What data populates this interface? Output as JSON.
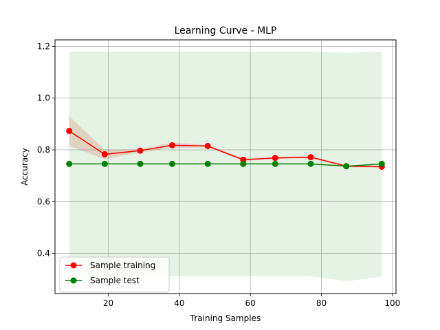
{
  "chart_data": {
    "type": "line",
    "title": "Learning Curve - MLP",
    "xlabel": "Training Samples",
    "ylabel": "Accuracy",
    "xlim": [
      5,
      101
    ],
    "ylim": [
      0.245,
      1.225
    ],
    "xticks": [
      20,
      40,
      60,
      80,
      100
    ],
    "yticks": [
      0.4,
      0.6,
      0.8,
      1.0,
      1.2
    ],
    "xtick_labels": [
      "20",
      "40",
      "60",
      "80",
      "100"
    ],
    "ytick_labels": [
      "0.4",
      "0.6",
      "0.8",
      "1.0",
      "1.2"
    ],
    "grid": true,
    "legend_position": "lower-left",
    "x": [
      9,
      19,
      29,
      38,
      48,
      58,
      67,
      77,
      87,
      97
    ],
    "series": [
      {
        "name": "Sample training",
        "color": "#ff0000",
        "band_color": "#d9542b",
        "values": [
          0.873,
          0.783,
          0.797,
          0.818,
          0.815,
          0.762,
          0.769,
          0.772,
          0.737,
          0.735
        ],
        "band_upper": [
          0.93,
          0.8,
          0.803,
          0.828,
          0.82,
          0.768,
          0.773,
          0.777,
          0.742,
          0.738
        ],
        "band_lower": [
          0.815,
          0.764,
          0.79,
          0.808,
          0.81,
          0.757,
          0.764,
          0.767,
          0.732,
          0.731
        ]
      },
      {
        "name": "Sample test",
        "color": "#008000",
        "band_color": "#2ca02c",
        "values": [
          0.746,
          0.746,
          0.746,
          0.746,
          0.746,
          0.746,
          0.746,
          0.746,
          0.737,
          0.746
        ],
        "band_upper": [
          1.18,
          1.18,
          1.18,
          1.18,
          1.18,
          1.18,
          1.18,
          1.18,
          1.175,
          1.18
        ],
        "band_lower": [
          0.312,
          0.312,
          0.312,
          0.312,
          0.312,
          0.312,
          0.312,
          0.312,
          0.292,
          0.31
        ]
      }
    ]
  }
}
